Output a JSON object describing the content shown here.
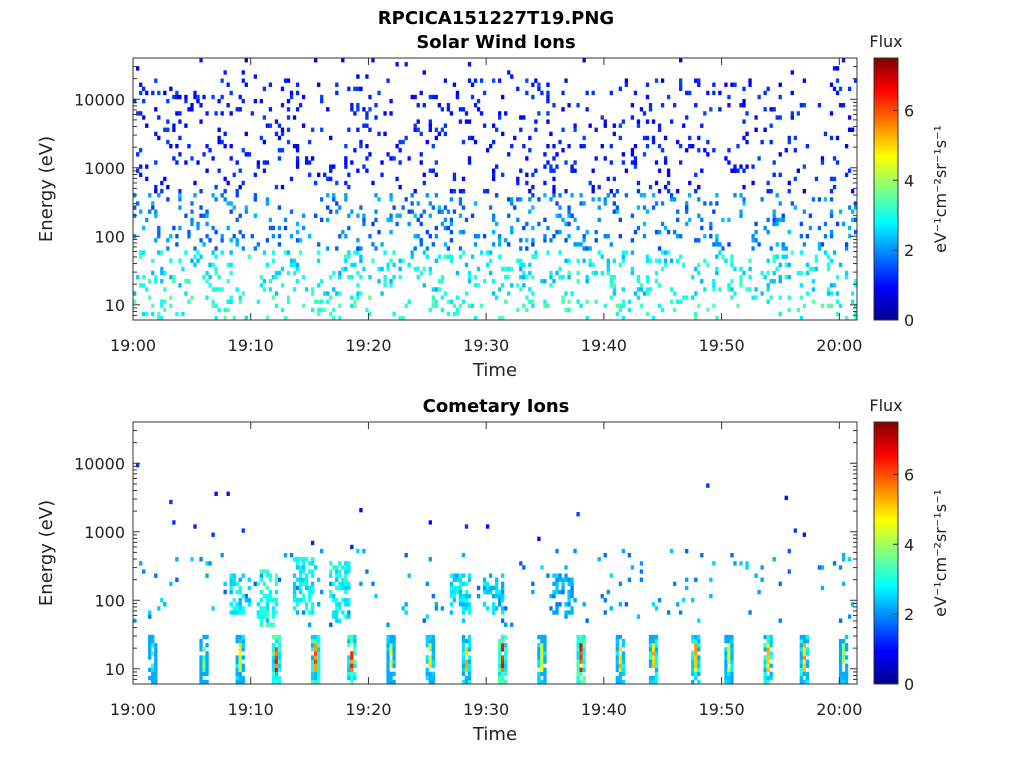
{
  "title": "RPCICA151227T19.PNG",
  "colorscale": [
    "#00008f",
    "#0000ff",
    "#0080ff",
    "#00ffff",
    "#80ff80",
    "#ffff00",
    "#ff8000",
    "#ff0000",
    "#800000"
  ],
  "chart_data": [
    {
      "type": "heatmap",
      "title": "Solar Wind Ions",
      "xlabel": "Time",
      "ylabel": "Energy (eV)",
      "x_ticks": [
        "19:00",
        "19:10",
        "19:20",
        "19:30",
        "19:40",
        "19:50",
        "20:00"
      ],
      "xlim_minutes": [
        0,
        61.5
      ],
      "y_scale": "log",
      "y_ticks": [
        "10",
        "100",
        "1000",
        "10000"
      ],
      "ylim": [
        6,
        40000
      ],
      "colorbar": {
        "label": "Flux",
        "unit": "eV⁻¹cm⁻²sr⁻¹s⁻¹",
        "ticks": [
          "0",
          "2",
          "4",
          "6"
        ],
        "range": [
          0,
          7.5
        ]
      },
      "pattern": {
        "seed": 7,
        "bands": [
          {
            "emin": 6,
            "emax": 14,
            "flux": [
              2.6,
              3.6
            ],
            "density": 0.12
          },
          {
            "emin": 14,
            "emax": 60,
            "flux": [
              2.2,
              3.3
            ],
            "density": 0.16
          },
          {
            "emin": 60,
            "emax": 400,
            "flux": [
              1.4,
              2.4
            ],
            "density": 0.14
          },
          {
            "emin": 400,
            "emax": 20000,
            "flux": [
              0.8,
              1.5
            ],
            "density": 0.1
          },
          {
            "emin": 20000,
            "emax": 40000,
            "flux": [
              0.8,
              1.2
            ],
            "density": 0.02
          }
        ],
        "bursts": []
      }
    },
    {
      "type": "heatmap",
      "title": "Cometary Ions",
      "xlabel": "Time",
      "ylabel": "Energy (eV)",
      "x_ticks": [
        "19:00",
        "19:10",
        "19:20",
        "19:30",
        "19:40",
        "19:50",
        "20:00"
      ],
      "xlim_minutes": [
        0,
        61.5
      ],
      "y_scale": "log",
      "y_ticks": [
        "10",
        "100",
        "1000",
        "10000"
      ],
      "ylim": [
        6,
        40000
      ],
      "colorbar": {
        "label": "Flux",
        "unit": "eV⁻¹cm⁻²sr⁻¹s⁻¹",
        "ticks": [
          "0",
          "2",
          "4",
          "6"
        ],
        "range": [
          0,
          7.5
        ]
      },
      "pattern": {
        "seed": 19,
        "bands": [
          {
            "emin": 40,
            "emax": 600,
            "flux": [
              1.6,
              2.6
            ],
            "density": 0.035
          },
          {
            "emin": 600,
            "emax": 12000,
            "flux": [
              0.9,
              1.4
            ],
            "density": 0.006
          }
        ],
        "bursts": [
          {
            "t": 1.6,
            "flux": 3.6
          },
          {
            "t": 5.8,
            "flux": 4.2
          },
          {
            "t": 9.0,
            "flux": 5.0
          },
          {
            "t": 12.0,
            "flux": 6.6
          },
          {
            "t": 15.3,
            "flux": 6.2
          },
          {
            "t": 18.5,
            "flux": 6.4
          },
          {
            "t": 21.8,
            "flux": 4.8
          },
          {
            "t": 25.0,
            "flux": 5.0
          },
          {
            "t": 28.2,
            "flux": 5.6
          },
          {
            "t": 31.3,
            "flux": 6.6
          },
          {
            "t": 34.6,
            "flux": 5.0
          },
          {
            "t": 37.9,
            "flux": 6.8
          },
          {
            "t": 41.2,
            "flux": 5.4
          },
          {
            "t": 44.1,
            "flux": 5.6
          },
          {
            "t": 47.6,
            "flux": 5.6
          },
          {
            "t": 50.6,
            "flux": 5.2
          },
          {
            "t": 53.9,
            "flux": 5.8
          },
          {
            "t": 57.0,
            "flux": 5.6
          },
          {
            "t": 60.3,
            "flux": 4.6
          }
        ],
        "clusters": [
          {
            "t": 9.0,
            "emin": 60,
            "emax": 250,
            "flux": 3.0
          },
          {
            "t": 11.2,
            "emin": 40,
            "emax": 300,
            "flux": 3.4
          },
          {
            "t": 14.3,
            "emin": 60,
            "emax": 400,
            "flux": 3.2
          },
          {
            "t": 17.5,
            "emin": 50,
            "emax": 350,
            "flux": 3.2
          },
          {
            "t": 27.8,
            "emin": 60,
            "emax": 250,
            "flux": 3.0
          },
          {
            "t": 30.5,
            "emin": 60,
            "emax": 250,
            "flux": 2.8
          },
          {
            "t": 36.5,
            "emin": 60,
            "emax": 250,
            "flux": 2.6
          }
        ]
      }
    }
  ]
}
